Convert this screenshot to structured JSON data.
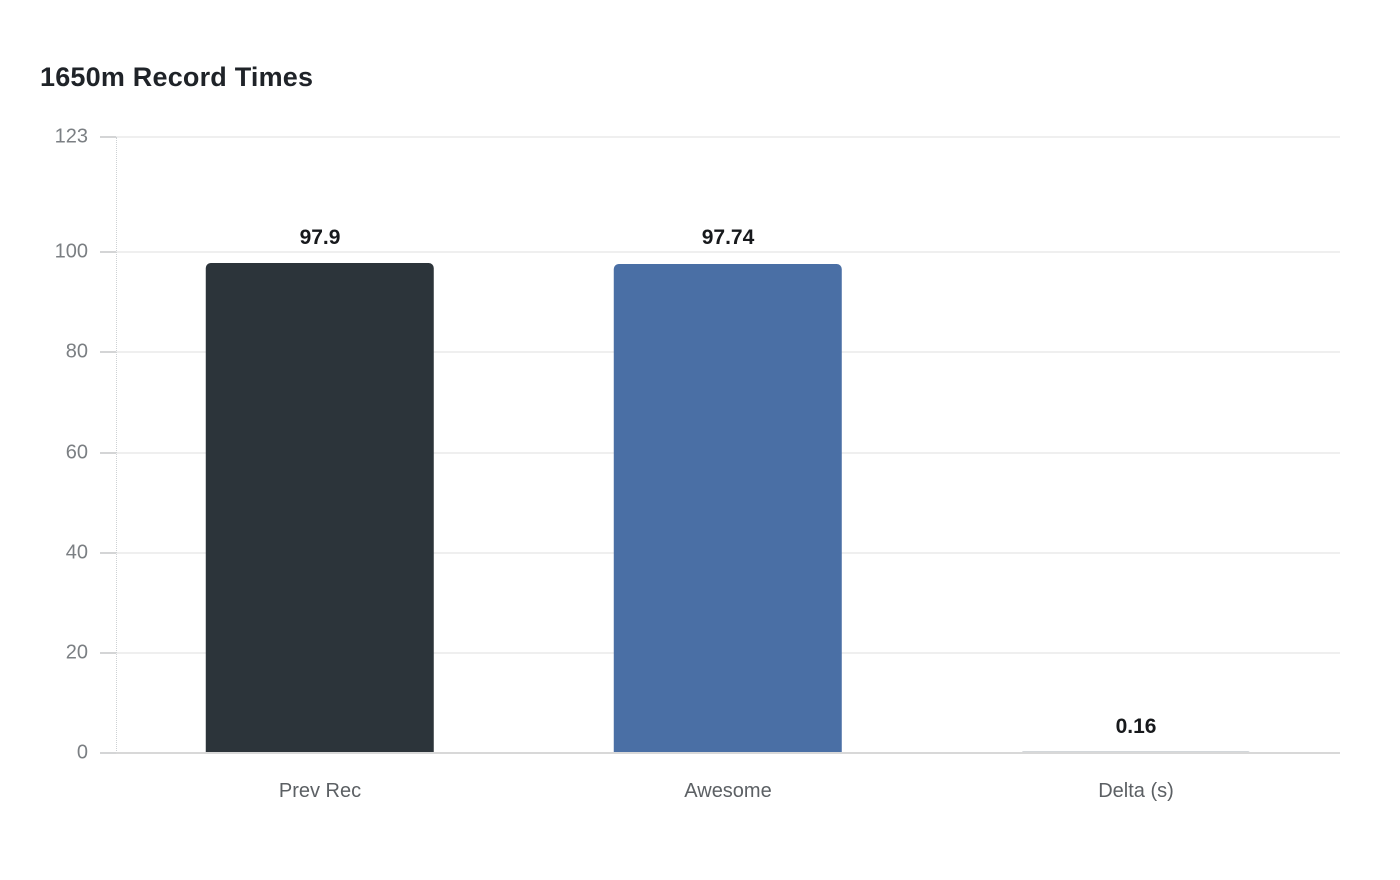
{
  "chart_data": {
    "type": "bar",
    "title": "1650m Record Times",
    "categories": [
      "Prev Rec",
      "Awesome",
      "Delta (s)"
    ],
    "values": [
      97.9,
      97.74,
      0.16
    ],
    "value_labels": [
      "97.9",
      "97.74",
      "0.16"
    ],
    "bar_colors": [
      "#2c343a",
      "#4a6fa5",
      "#d3d7da"
    ],
    "ylim": [
      0,
      123
    ],
    "yticks": [
      0,
      20,
      40,
      60,
      80,
      100,
      123
    ],
    "xlabel": "",
    "ylabel": "",
    "grid": "horizontal",
    "legend": "none",
    "colors": {
      "background": "#ffffff",
      "title_text": "#1f2328",
      "tick_text": "#7b7f83",
      "category_text": "#5c6064",
      "value_text": "#17191c",
      "grid": "#efefef",
      "baseline": "#d8d8d8",
      "axis_dotted": "#cdd1d4",
      "tick_mark": "#a8abae"
    }
  }
}
